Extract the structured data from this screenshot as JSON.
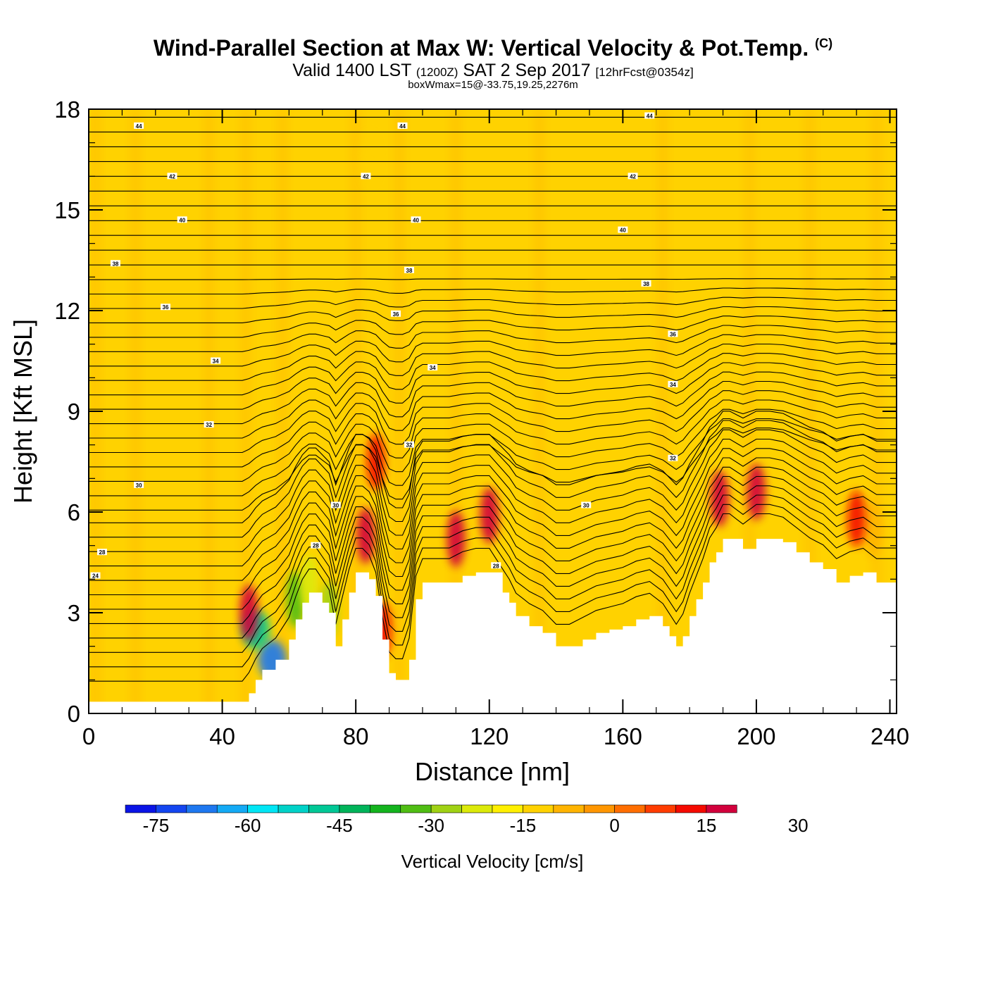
{
  "header": {
    "title": "Wind-Parallel Section at Max W: Vertical Velocity & Pot.Temp.",
    "copyright": "(C)",
    "subtitle_main_a": "Valid 1400 LST",
    "subtitle_small_a": "(1200Z)",
    "subtitle_main_b": "SAT 2 Sep 2017",
    "subtitle_small_b": "[12hrFcst@0354z]",
    "subtitle2": "boxWmax=15@-33.75,19.25,2276m"
  },
  "chart_data": {
    "type": "heatmap",
    "xlabel": "Distance [nm]",
    "ylabel": "Height [Kft MSL]",
    "xlim": [
      0,
      242
    ],
    "ylim": [
      0,
      18
    ],
    "x_ticks": [
      0,
      40,
      80,
      120,
      160,
      200,
      240
    ],
    "y_ticks": [
      0,
      3,
      6,
      9,
      12,
      15,
      18
    ],
    "colorbar": {
      "label": "Vertical Velocity [cm/s]",
      "tick_values": [
        -75,
        -60,
        -45,
        -30,
        -15,
        0,
        15,
        30
      ],
      "colors": [
        "#0a14e6",
        "#1446f0",
        "#1e78f0",
        "#14aaf5",
        "#00e6f5",
        "#00d2c8",
        "#00c896",
        "#00b45a",
        "#14b41e",
        "#50be14",
        "#a0d214",
        "#dcea0a",
        "#fff000",
        "#ffd200",
        "#ffb400",
        "#ff9600",
        "#ff6e00",
        "#ff3c00",
        "#f50a00",
        "#d2003c"
      ],
      "boundaries": [
        -80,
        -75,
        -70,
        -65,
        -60,
        -55,
        -50,
        -45,
        -40,
        -35,
        -30,
        -25,
        -20,
        -15,
        -10,
        -5,
        0,
        5,
        10,
        15,
        20,
        25,
        30,
        35,
        40
      ]
    },
    "terrain_height_kft": {
      "x": [
        0,
        8,
        20,
        30,
        40,
        46,
        48,
        50,
        52,
        56,
        60,
        62,
        64,
        66,
        68,
        70,
        72,
        74,
        76,
        78,
        80,
        82,
        84,
        86,
        88,
        90,
        92,
        94,
        96,
        98,
        100,
        104,
        108,
        112,
        116,
        120,
        124,
        126,
        128,
        132,
        136,
        140,
        144,
        148,
        152,
        156,
        160,
        164,
        168,
        172,
        174,
        176,
        178,
        180,
        182,
        184,
        186,
        188,
        190,
        192,
        196,
        200,
        204,
        208,
        212,
        216,
        220,
        224,
        228,
        232,
        236,
        240,
        242
      ],
      "y": [
        0.35,
        0.35,
        0.35,
        0.35,
        0.35,
        0.35,
        0.6,
        1.0,
        1.3,
        1.6,
        2.2,
        2.8,
        3.3,
        3.6,
        3.6,
        3.3,
        3.0,
        2.0,
        2.8,
        3.6,
        4.2,
        4.2,
        4.0,
        3.5,
        2.2,
        1.2,
        1.0,
        1.0,
        1.6,
        3.4,
        3.9,
        3.9,
        3.9,
        4.1,
        4.2,
        4.2,
        3.6,
        3.3,
        2.9,
        2.6,
        2.4,
        2.0,
        2.0,
        2.2,
        2.4,
        2.5,
        2.6,
        2.8,
        2.9,
        2.6,
        2.3,
        2.0,
        2.3,
        2.9,
        3.4,
        3.9,
        4.5,
        4.8,
        5.2,
        5.2,
        4.9,
        5.2,
        5.2,
        5.1,
        4.8,
        4.5,
        4.3,
        3.9,
        4.1,
        4.2,
        3.9,
        3.9,
        3.9
      ]
    },
    "velocity_features": [
      {
        "x": 55,
        "y": 1.6,
        "w_cm_s": -70
      },
      {
        "x": 50,
        "y": 2.5,
        "w_cm_s": -50
      },
      {
        "x": 62,
        "y": 3.4,
        "w_cm_s": -35
      },
      {
        "x": 66,
        "y": 3.9,
        "w_cm_s": -25
      },
      {
        "x": 72,
        "y": 3.1,
        "w_cm_s": -30
      },
      {
        "x": 84,
        "y": 16.5,
        "w_cm_s": -15
      },
      {
        "x": 88,
        "y": 12.0,
        "w_cm_s": -12
      },
      {
        "x": 48,
        "y": 3.0,
        "w_cm_s": 20
      },
      {
        "x": 83,
        "y": 5.3,
        "w_cm_s": 22
      },
      {
        "x": 86,
        "y": 7.5,
        "w_cm_s": 12
      },
      {
        "x": 88,
        "y": 2.5,
        "w_cm_s": 12
      },
      {
        "x": 110,
        "y": 5.2,
        "w_cm_s": 18
      },
      {
        "x": 120,
        "y": 5.9,
        "w_cm_s": 25
      },
      {
        "x": 189,
        "y": 6.4,
        "w_cm_s": 22
      },
      {
        "x": 200,
        "y": 6.6,
        "w_cm_s": 28
      },
      {
        "x": 190,
        "y": 8.5,
        "w_cm_s": -15
      },
      {
        "x": 235,
        "y": 5.5,
        "w_cm_s": -10
      },
      {
        "x": 230,
        "y": 5.8,
        "w_cm_s": 10
      }
    ],
    "isentropes": {
      "level_labels": [
        {
          "text": "44",
          "x": 15,
          "y": 17.5
        },
        {
          "text": "44",
          "x": 94,
          "y": 17.5
        },
        {
          "text": "44",
          "x": 168,
          "y": 17.8
        },
        {
          "text": "42",
          "x": 25,
          "y": 16.0
        },
        {
          "text": "42",
          "x": 83,
          "y": 16.0
        },
        {
          "text": "42",
          "x": 163,
          "y": 16.0
        },
        {
          "text": "40",
          "x": 28,
          "y": 14.7
        },
        {
          "text": "40",
          "x": 98,
          "y": 14.7
        },
        {
          "text": "40",
          "x": 160,
          "y": 14.4
        },
        {
          "text": "38",
          "x": 8,
          "y": 13.4
        },
        {
          "text": "38",
          "x": 96,
          "y": 13.2
        },
        {
          "text": "38",
          "x": 167,
          "y": 12.8
        },
        {
          "text": "36",
          "x": 23,
          "y": 12.1
        },
        {
          "text": "36",
          "x": 92,
          "y": 11.9
        },
        {
          "text": "36",
          "x": 175,
          "y": 11.3
        },
        {
          "text": "34",
          "x": 38,
          "y": 10.5
        },
        {
          "text": "34",
          "x": 103,
          "y": 10.3
        },
        {
          "text": "34",
          "x": 175,
          "y": 9.8
        },
        {
          "text": "32",
          "x": 36,
          "y": 8.6
        },
        {
          "text": "32",
          "x": 96,
          "y": 8.0
        },
        {
          "text": "32",
          "x": 175,
          "y": 7.6
        },
        {
          "text": "30",
          "x": 15,
          "y": 6.8
        },
        {
          "text": "30",
          "x": 74,
          "y": 6.2
        },
        {
          "text": "30",
          "x": 149,
          "y": 6.2
        },
        {
          "text": "28",
          "x": 4,
          "y": 4.8
        },
        {
          "text": "28",
          "x": 68,
          "y": 5.0
        },
        {
          "text": "28",
          "x": 122,
          "y": 4.4
        },
        {
          "text": "24",
          "x": 2,
          "y": 4.1
        }
      ]
    }
  }
}
